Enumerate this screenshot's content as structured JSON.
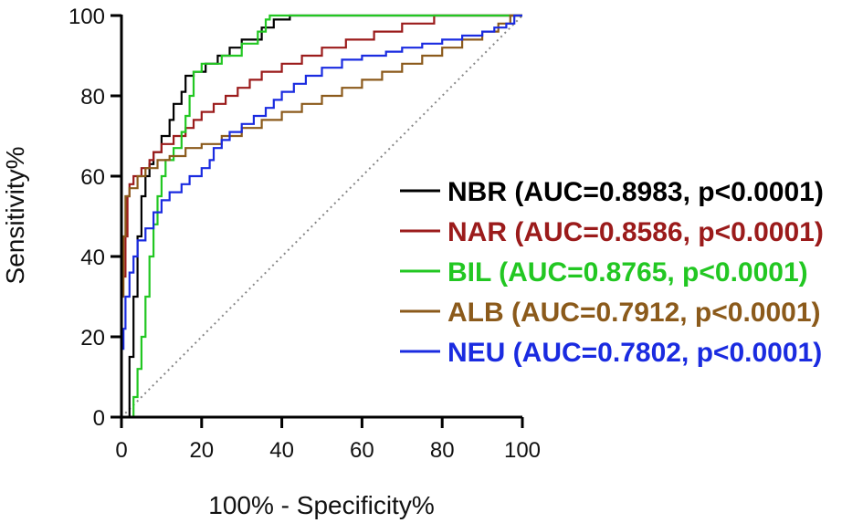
{
  "chart_data": {
    "type": "line",
    "title": "",
    "xlabel": "100% - Specificity%",
    "ylabel": "Sensitivity%",
    "xlim": [
      0,
      100
    ],
    "ylim": [
      0,
      100
    ],
    "xticks": [
      "0",
      "20",
      "40",
      "60",
      "80",
      "100"
    ],
    "yticks": [
      "0",
      "20",
      "40",
      "60",
      "80",
      "100"
    ],
    "grid": false,
    "legend_position": "right",
    "reference_line": {
      "style": "dotted",
      "color": "#888888",
      "points": [
        [
          0,
          0
        ],
        [
          100,
          100
        ]
      ]
    },
    "series": [
      {
        "name": "NBR (AUC=0.8983, p<0.0001)",
        "color": "#000000",
        "points": [
          [
            0,
            0
          ],
          [
            2,
            0
          ],
          [
            2,
            15
          ],
          [
            3,
            15
          ],
          [
            3,
            30
          ],
          [
            4,
            30
          ],
          [
            4,
            45
          ],
          [
            5,
            45
          ],
          [
            5,
            55
          ],
          [
            6,
            55
          ],
          [
            6,
            60
          ],
          [
            7,
            60
          ],
          [
            7,
            63
          ],
          [
            8,
            63
          ],
          [
            8,
            66
          ],
          [
            10,
            66
          ],
          [
            10,
            70
          ],
          [
            12,
            70
          ],
          [
            12,
            74
          ],
          [
            13,
            74
          ],
          [
            13,
            78
          ],
          [
            15,
            78
          ],
          [
            15,
            81
          ],
          [
            16,
            81
          ],
          [
            16,
            85
          ],
          [
            18,
            85
          ],
          [
            18,
            86
          ],
          [
            21,
            86
          ],
          [
            21,
            88
          ],
          [
            24,
            88
          ],
          [
            24,
            90
          ],
          [
            27,
            90
          ],
          [
            27,
            92
          ],
          [
            30,
            92
          ],
          [
            30,
            94
          ],
          [
            35,
            94
          ],
          [
            35,
            97
          ],
          [
            38,
            97
          ],
          [
            38,
            99
          ],
          [
            42,
            99
          ],
          [
            42,
            100
          ],
          [
            100,
            100
          ]
        ]
      },
      {
        "name": "NAR (AUC=0.8586, p<0.0001)",
        "color": "#9b1b1b",
        "points": [
          [
            0,
            0
          ],
          [
            0,
            35
          ],
          [
            1,
            35
          ],
          [
            1,
            45
          ],
          [
            1.5,
            45
          ],
          [
            1.5,
            55
          ],
          [
            2,
            55
          ],
          [
            2,
            58
          ],
          [
            3,
            58
          ],
          [
            3,
            60
          ],
          [
            5,
            60
          ],
          [
            5,
            62
          ],
          [
            7,
            62
          ],
          [
            7,
            64
          ],
          [
            8,
            64
          ],
          [
            8,
            66
          ],
          [
            10,
            66
          ],
          [
            10,
            68
          ],
          [
            13,
            68
          ],
          [
            13,
            70
          ],
          [
            16,
            70
          ],
          [
            16,
            72
          ],
          [
            18,
            72
          ],
          [
            18,
            74
          ],
          [
            20,
            74
          ],
          [
            20,
            76
          ],
          [
            23,
            76
          ],
          [
            23,
            78
          ],
          [
            26,
            78
          ],
          [
            26,
            80
          ],
          [
            29,
            80
          ],
          [
            29,
            82
          ],
          [
            32,
            82
          ],
          [
            32,
            84
          ],
          [
            35,
            84
          ],
          [
            35,
            86
          ],
          [
            40,
            86
          ],
          [
            40,
            88
          ],
          [
            45,
            88
          ],
          [
            45,
            90
          ],
          [
            50,
            90
          ],
          [
            50,
            92
          ],
          [
            56,
            92
          ],
          [
            56,
            94
          ],
          [
            63,
            94
          ],
          [
            63,
            96
          ],
          [
            70,
            96
          ],
          [
            70,
            98
          ],
          [
            78,
            98
          ],
          [
            78,
            100
          ],
          [
            100,
            100
          ]
        ]
      },
      {
        "name": "BIL (AUC=0.8765, p<0.0001)",
        "color": "#22c722",
        "points": [
          [
            0,
            0
          ],
          [
            3,
            0
          ],
          [
            3,
            5
          ],
          [
            4,
            5
          ],
          [
            4,
            12
          ],
          [
            5,
            12
          ],
          [
            5,
            20
          ],
          [
            6,
            20
          ],
          [
            6,
            30
          ],
          [
            7,
            30
          ],
          [
            7,
            40
          ],
          [
            8,
            40
          ],
          [
            8,
            48
          ],
          [
            9,
            48
          ],
          [
            9,
            55
          ],
          [
            10,
            55
          ],
          [
            10,
            60
          ],
          [
            11,
            60
          ],
          [
            11,
            64
          ],
          [
            13,
            64
          ],
          [
            13,
            67
          ],
          [
            15,
            67
          ],
          [
            15,
            71
          ],
          [
            16,
            71
          ],
          [
            16,
            75
          ],
          [
            17,
            75
          ],
          [
            17,
            80
          ],
          [
            18,
            80
          ],
          [
            18,
            86
          ],
          [
            20,
            86
          ],
          [
            20,
            88
          ],
          [
            25,
            88
          ],
          [
            25,
            90
          ],
          [
            30,
            90
          ],
          [
            30,
            93
          ],
          [
            34,
            93
          ],
          [
            34,
            96
          ],
          [
            36,
            96
          ],
          [
            36,
            99
          ],
          [
            37,
            99
          ],
          [
            37,
            100
          ],
          [
            100,
            100
          ]
        ]
      },
      {
        "name": "ALB (AUC=0.7912, p<0.0001)",
        "color": "#8b5a1b",
        "points": [
          [
            0,
            0
          ],
          [
            0,
            30
          ],
          [
            0.5,
            30
          ],
          [
            0.5,
            45
          ],
          [
            1,
            45
          ],
          [
            1,
            55
          ],
          [
            2,
            55
          ],
          [
            2,
            57
          ],
          [
            4,
            57
          ],
          [
            4,
            60
          ],
          [
            6,
            60
          ],
          [
            6,
            62
          ],
          [
            9,
            62
          ],
          [
            9,
            64
          ],
          [
            12,
            64
          ],
          [
            12,
            65
          ],
          [
            16,
            65
          ],
          [
            16,
            67
          ],
          [
            20,
            67
          ],
          [
            20,
            68
          ],
          [
            25,
            68
          ],
          [
            25,
            70
          ],
          [
            30,
            70
          ],
          [
            30,
            72
          ],
          [
            35,
            72
          ],
          [
            35,
            74
          ],
          [
            40,
            74
          ],
          [
            40,
            76
          ],
          [
            45,
            76
          ],
          [
            45,
            78
          ],
          [
            50,
            78
          ],
          [
            50,
            80
          ],
          [
            55,
            80
          ],
          [
            55,
            82
          ],
          [
            60,
            82
          ],
          [
            60,
            84
          ],
          [
            65,
            84
          ],
          [
            65,
            86
          ],
          [
            70,
            86
          ],
          [
            70,
            88
          ],
          [
            75,
            88
          ],
          [
            75,
            90
          ],
          [
            80,
            90
          ],
          [
            80,
            92
          ],
          [
            85,
            92
          ],
          [
            85,
            94
          ],
          [
            90,
            94
          ],
          [
            90,
            96
          ],
          [
            94,
            96
          ],
          [
            94,
            98
          ],
          [
            97,
            98
          ],
          [
            97,
            100
          ],
          [
            100,
            100
          ]
        ]
      },
      {
        "name": "NEU (AUC=0.7802, p<0.0001)",
        "color": "#1a2be0",
        "points": [
          [
            0,
            0
          ],
          [
            0,
            17
          ],
          [
            0.5,
            17
          ],
          [
            0.5,
            22
          ],
          [
            1,
            22
          ],
          [
            1,
            30
          ],
          [
            2,
            30
          ],
          [
            2,
            36
          ],
          [
            3,
            36
          ],
          [
            3,
            40
          ],
          [
            4,
            40
          ],
          [
            4,
            44
          ],
          [
            6,
            44
          ],
          [
            6,
            47
          ],
          [
            8,
            47
          ],
          [
            8,
            51
          ],
          [
            10,
            51
          ],
          [
            10,
            54
          ],
          [
            12,
            54
          ],
          [
            12,
            56
          ],
          [
            15,
            56
          ],
          [
            15,
            58
          ],
          [
            17,
            58
          ],
          [
            17,
            60
          ],
          [
            20,
            60
          ],
          [
            20,
            62
          ],
          [
            22,
            62
          ],
          [
            22,
            64
          ],
          [
            23,
            64
          ],
          [
            23,
            67
          ],
          [
            25,
            67
          ],
          [
            25,
            69
          ],
          [
            27,
            69
          ],
          [
            27,
            71
          ],
          [
            30,
            71
          ],
          [
            30,
            73
          ],
          [
            33,
            73
          ],
          [
            33,
            75
          ],
          [
            36,
            75
          ],
          [
            36,
            77
          ],
          [
            38,
            77
          ],
          [
            38,
            79
          ],
          [
            40,
            79
          ],
          [
            40,
            81
          ],
          [
            43,
            81
          ],
          [
            43,
            83
          ],
          [
            46,
            83
          ],
          [
            46,
            85
          ],
          [
            50,
            85
          ],
          [
            50,
            87
          ],
          [
            55,
            87
          ],
          [
            55,
            89
          ],
          [
            60,
            89
          ],
          [
            60,
            90
          ],
          [
            66,
            90
          ],
          [
            66,
            91
          ],
          [
            70,
            91
          ],
          [
            70,
            92
          ],
          [
            75,
            92
          ],
          [
            75,
            93
          ],
          [
            80,
            93
          ],
          [
            80,
            94
          ],
          [
            85,
            94
          ],
          [
            85,
            95
          ],
          [
            90,
            95
          ],
          [
            90,
            96
          ],
          [
            93,
            96
          ],
          [
            93,
            97
          ],
          [
            96,
            97
          ],
          [
            96,
            98
          ],
          [
            98,
            98
          ],
          [
            98,
            100
          ],
          [
            100,
            100
          ]
        ]
      }
    ]
  }
}
